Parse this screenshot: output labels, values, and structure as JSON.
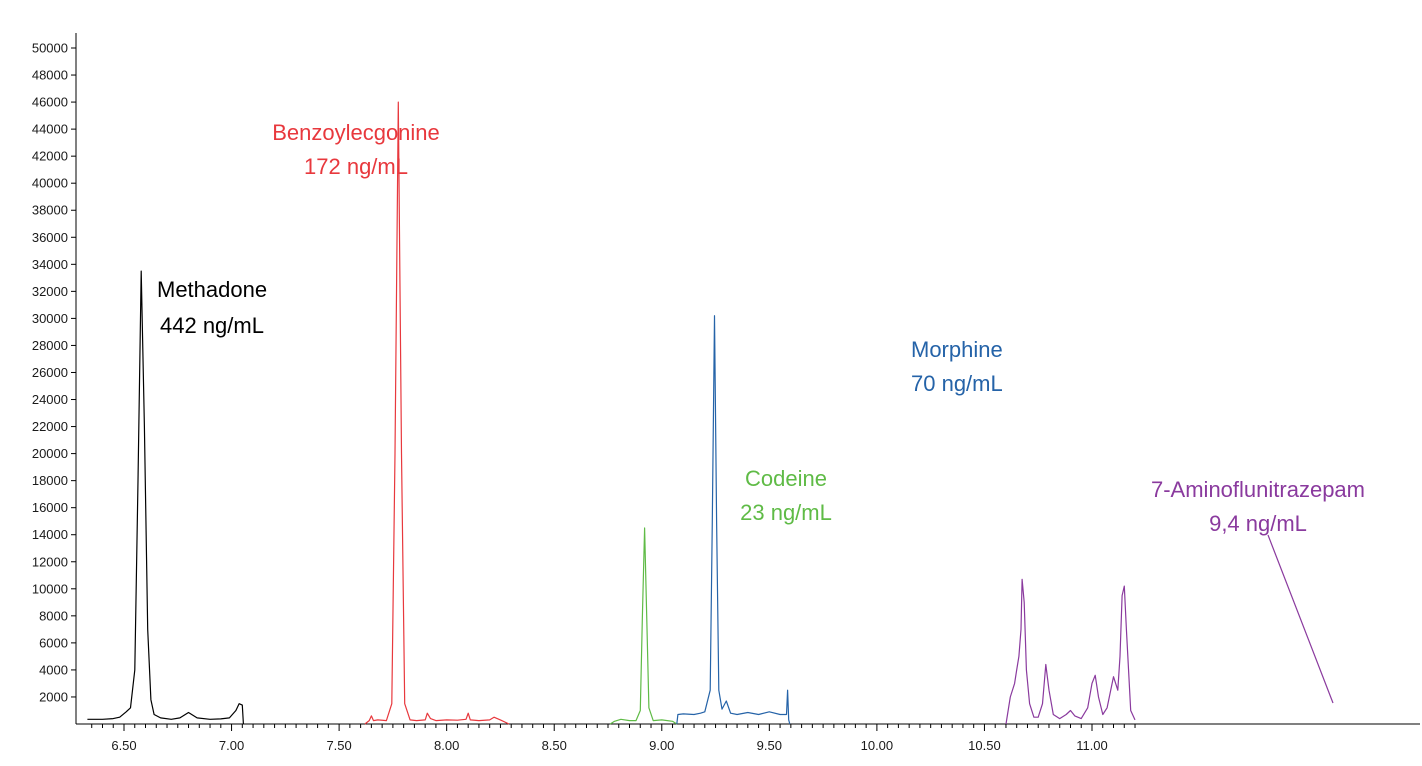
{
  "chart_data": {
    "type": "line",
    "title": "",
    "xlabel": "",
    "ylabel": "",
    "xlim": [
      6.33,
      11.2
    ],
    "ylim": [
      0,
      51000
    ],
    "grid": false,
    "legend": "none",
    "x_ticks": [
      "6.50",
      "7.00",
      "7.50",
      "8.00",
      "8.50",
      "9.00",
      "9.50",
      "10.00",
      "10.50",
      "11.00"
    ],
    "x_tick_values": [
      6.5,
      7.0,
      7.5,
      8.0,
      8.5,
      9.0,
      9.5,
      10.0,
      10.5,
      11.0
    ],
    "y_ticks": [
      "2000",
      "4000",
      "6000",
      "8000",
      "10000",
      "12000",
      "14000",
      "16000",
      "18000",
      "20000",
      "22000",
      "24000",
      "26000",
      "28000",
      "30000",
      "32000",
      "34000",
      "36000",
      "38000",
      "40000",
      "42000",
      "44000",
      "46000",
      "48000",
      "50000"
    ],
    "y_tick_values": [
      2000,
      4000,
      6000,
      8000,
      10000,
      12000,
      14000,
      16000,
      18000,
      20000,
      22000,
      24000,
      26000,
      28000,
      30000,
      32000,
      34000,
      36000,
      38000,
      40000,
      42000,
      44000,
      46000,
      48000,
      50000
    ],
    "series": [
      {
        "color": "#000000",
        "x": [
          6.33,
          6.4,
          6.45,
          6.48,
          6.51,
          6.53,
          6.55,
          6.565,
          6.58,
          6.595,
          6.61,
          6.625,
          6.64,
          6.67,
          6.72,
          6.76,
          6.8,
          6.84,
          6.9,
          6.95,
          6.99,
          7.02,
          7.035,
          7.05,
          7.055
        ],
        "y": [
          350,
          350,
          400,
          500,
          900,
          1200,
          4000,
          18000,
          33500,
          22000,
          7000,
          1800,
          700,
          450,
          350,
          450,
          850,
          450,
          350,
          380,
          450,
          1000,
          1500,
          1400,
          0
        ]
      },
      {
        "color": "#e8383d",
        "x": [
          7.62,
          7.64,
          7.65,
          7.66,
          7.68,
          7.72,
          7.745,
          7.76,
          7.775,
          7.79,
          7.805,
          7.83,
          7.86,
          7.9,
          7.91,
          7.925,
          7.95,
          8.0,
          8.05,
          8.09,
          8.1,
          8.11,
          8.15,
          8.2,
          8.22,
          8.25,
          8.29
        ],
        "y": [
          0,
          250,
          600,
          250,
          300,
          250,
          1500,
          20000,
          46000,
          20000,
          1500,
          300,
          250,
          300,
          800,
          400,
          250,
          300,
          280,
          350,
          800,
          300,
          250,
          300,
          500,
          300,
          0
        ]
      },
      {
        "color": "#5fbb46",
        "x": [
          8.76,
          8.78,
          8.81,
          8.85,
          8.88,
          8.9,
          8.91,
          8.92,
          8.93,
          8.94,
          8.96,
          9.0,
          9.05,
          9.07
        ],
        "y": [
          0,
          200,
          350,
          250,
          250,
          1000,
          8000,
          14500,
          8000,
          1200,
          250,
          300,
          200,
          0
        ]
      },
      {
        "color": "#2563a8",
        "x": [
          9.07,
          9.075,
          9.1,
          9.15,
          9.18,
          9.2,
          9.225,
          9.235,
          9.245,
          9.255,
          9.265,
          9.28,
          9.3,
          9.32,
          9.35,
          9.4,
          9.45,
          9.5,
          9.55,
          9.58,
          9.585,
          9.59,
          9.595
        ],
        "y": [
          0,
          700,
          750,
          700,
          800,
          900,
          2500,
          15000,
          30200,
          15000,
          2500,
          1100,
          1700,
          800,
          700,
          850,
          700,
          900,
          700,
          700,
          2500,
          300,
          0
        ]
      },
      {
        "color": "#8a3a9e",
        "x": [
          10.6,
          10.62,
          10.64,
          10.65,
          10.66,
          10.67,
          10.675,
          10.685,
          10.695,
          10.71,
          10.73,
          10.75,
          10.77,
          10.785,
          10.8,
          10.82,
          10.85,
          10.88,
          10.9,
          10.92,
          10.95,
          10.98,
          11.0,
          11.015,
          11.03,
          11.05,
          11.07,
          11.1,
          11.12,
          11.13,
          11.14,
          11.15,
          11.16,
          11.18,
          11.2
        ],
        "y": [
          0,
          2000,
          3000,
          4000,
          5000,
          7000,
          10700,
          9000,
          4000,
          1500,
          500,
          500,
          1500,
          4400,
          2500,
          700,
          400,
          700,
          1000,
          600,
          400,
          1200,
          3000,
          3600,
          2000,
          700,
          1200,
          3500,
          2500,
          5000,
          9500,
          10200,
          7000,
          1000,
          300
        ]
      }
    ],
    "annotations": [
      {
        "name": "Methadone",
        "value": "442 ng/mL",
        "color": "#000000"
      },
      {
        "name": "Benzoylecgonine",
        "value": "172 ng/mL",
        "color": "#e8383d"
      },
      {
        "name": "Codeine",
        "value": "23 ng/mL",
        "color": "#5fbb46"
      },
      {
        "name": "Morphine",
        "value": "70 ng/mL",
        "color": "#2563a8"
      },
      {
        "name": "7-Aminoflunitrazepam",
        "value": "9,4 ng/mL",
        "color": "#8a3a9e"
      }
    ]
  }
}
